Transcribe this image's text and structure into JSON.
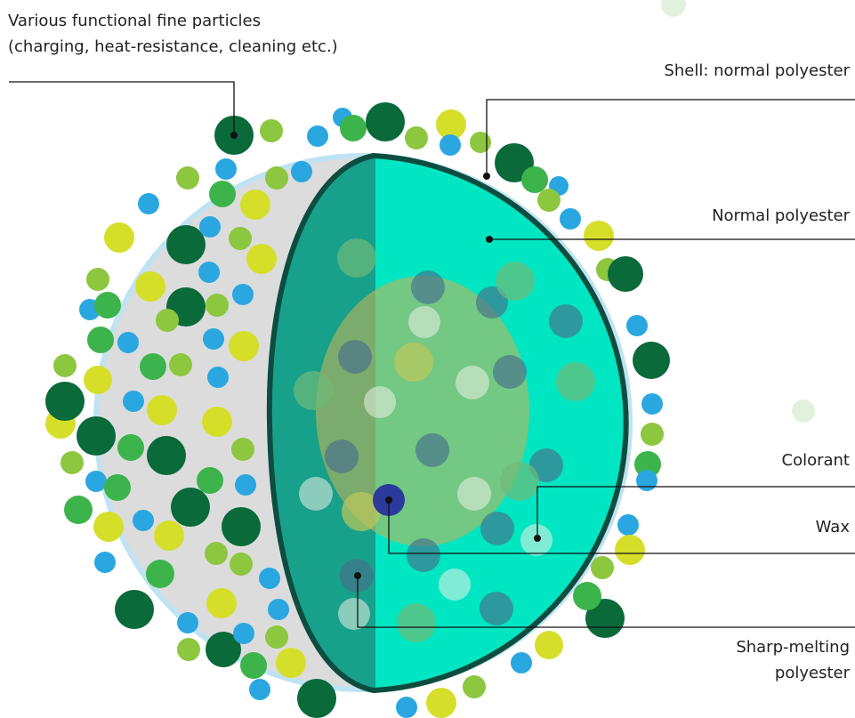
{
  "labels": {
    "fine_particles": [
      "Various functional fine particles",
      "(charging, heat-resistance, cleaning etc.)"
    ],
    "shell": "Shell: normal polyester",
    "normal_polyester": "Normal polyester",
    "colorant": "Colorant",
    "wax": "Wax",
    "sharp_melting": [
      "Sharp-melting",
      "polyester"
    ]
  }
}
